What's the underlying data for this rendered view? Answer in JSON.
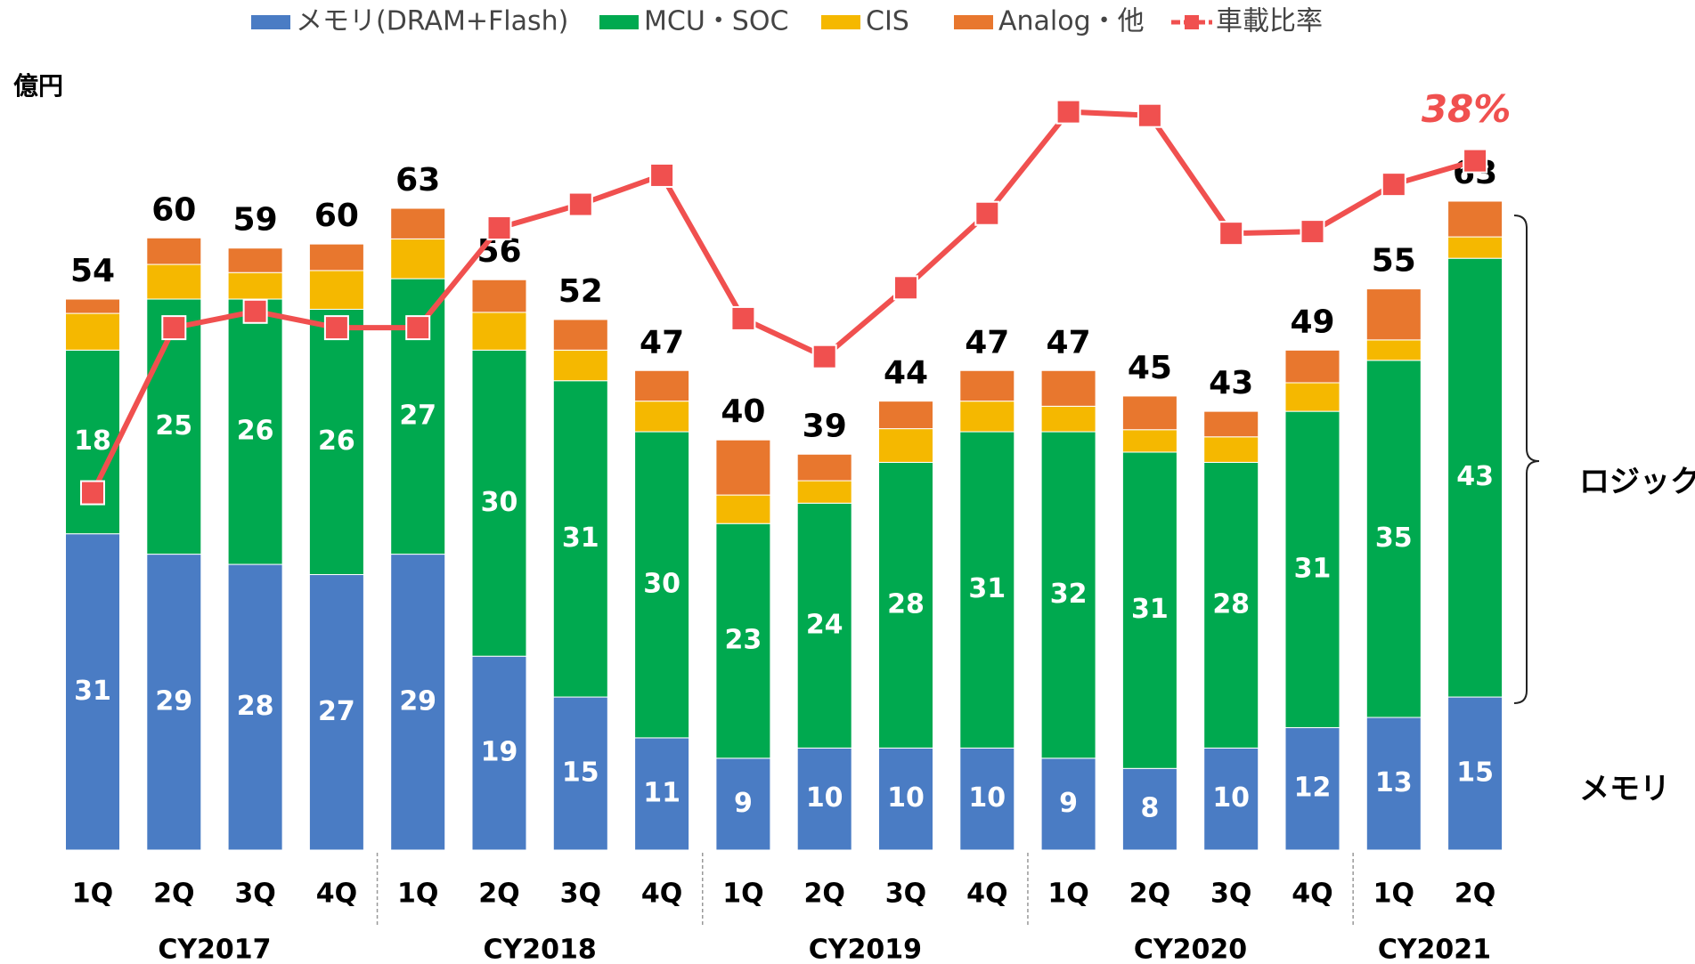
{
  "chart_data": {
    "type": "bar",
    "stacked": true,
    "ylabel": "億円",
    "groups": [
      {
        "name": "CY2017",
        "categories": [
          "1Q",
          "2Q",
          "3Q",
          "4Q"
        ]
      },
      {
        "name": "CY2018",
        "categories": [
          "1Q",
          "2Q",
          "3Q",
          "4Q"
        ]
      },
      {
        "name": "CY2019",
        "categories": [
          "1Q",
          "2Q",
          "3Q",
          "4Q"
        ]
      },
      {
        "name": "CY2020",
        "categories": [
          "1Q",
          "2Q",
          "3Q",
          "4Q"
        ]
      },
      {
        "name": "CY2021",
        "categories": [
          "1Q",
          "2Q"
        ]
      }
    ],
    "series": [
      {
        "name": "メモリ(DRAM+Flash)",
        "color": "#4a7cc4",
        "values": [
          31,
          29,
          28,
          27,
          29,
          19,
          15,
          11,
          9,
          10,
          10,
          10,
          9,
          8,
          10,
          12,
          13,
          15
        ],
        "labelled": true
      },
      {
        "name": "MCU・SOC",
        "color": "#00a94f",
        "values": [
          18,
          25,
          26,
          26,
          27,
          30,
          31,
          30,
          23,
          24,
          28,
          31,
          32,
          31,
          28,
          31,
          35,
          43
        ],
        "labelled": true
      },
      {
        "name": "CIS",
        "color": "#f5b800",
        "values": [
          3.6,
          3.4,
          2.6,
          3.8,
          3.9,
          3.7,
          3.0,
          3.0,
          2.8,
          2.2,
          3.3,
          3.0,
          2.5,
          2.2,
          2.5,
          2.8,
          2.0,
          2.1
        ]
      },
      {
        "name": "Analog・他",
        "color": "#e8772e",
        "values": [
          1.4,
          2.6,
          2.4,
          2.6,
          3.0,
          3.2,
          3.0,
          3.0,
          5.4,
          2.6,
          2.7,
          3.0,
          3.5,
          3.3,
          2.5,
          3.2,
          5.0,
          3.5
        ]
      },
      {
        "name": "車載比率",
        "color": "#f0504f",
        "type": "line",
        "axis": "y2",
        "values": [
          19.7,
          28.8,
          29.7,
          28.8,
          28.8,
          34.3,
          35.6,
          37.2,
          29.3,
          27.2,
          31.0,
          35.1,
          40.7,
          40.5,
          34.0,
          34.1,
          36.7,
          38
        ],
        "value_labels": [
          null,
          null,
          null,
          null,
          null,
          null,
          null,
          null,
          null,
          null,
          null,
          null,
          null,
          null,
          null,
          null,
          null,
          "38%"
        ]
      }
    ],
    "totals": [
      54,
      60,
      59,
      60,
      63,
      56,
      52,
      47,
      40,
      39,
      44,
      47,
      47,
      45,
      43,
      49,
      55,
      63
    ],
    "ylim": [
      0,
      80
    ],
    "y2lim": [
      0,
      45
    ],
    "annotations": [
      "ロジック",
      "メモリ"
    ]
  }
}
